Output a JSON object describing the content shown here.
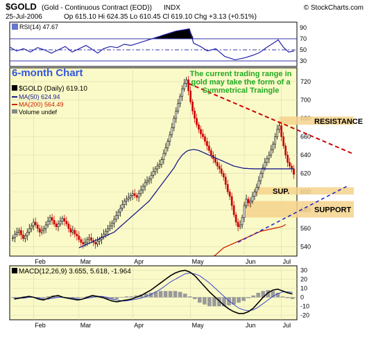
{
  "header": {
    "symbol": "$GOLD",
    "description": "(Gold - Continuous Contract (EOD))",
    "exchange": "INDX",
    "brand": "© StockCharts.com",
    "date": "25-Jul-2006",
    "ohlc": "Op 615.10  Hi 624.35  Lo 610.45  Cl 619.10  Chg +3.13 (+0.51%)"
  },
  "colors": {
    "panel_bg": "#fafac8",
    "price_line": "#000000",
    "up_bar": "#000000",
    "down_bar": "#cc0000",
    "ma50": "#1a1a8c",
    "ma200": "#cc2200",
    "trend_resistance": "#cc0000",
    "trend_support": "#2222cc",
    "zone": "#f5d28c",
    "annotation_green": "#22aa22",
    "label_blue": "#3355dd"
  },
  "chart_data": [
    {
      "type": "line",
      "panel": "rsi",
      "legend": "RSI(14) 47.67",
      "yticks": [
        30,
        50,
        70,
        90
      ],
      "ylim": [
        20,
        100
      ],
      "overbought": 70,
      "oversold": 30,
      "x": [
        0,
        10,
        20,
        30,
        40,
        50,
        60,
        70,
        80,
        90,
        100,
        110,
        120,
        127,
        135,
        145,
        155,
        165,
        175,
        185,
        195,
        205,
        215,
        222,
        230,
        240,
        250,
        259,
        265,
        275,
        285,
        297,
        310,
        325,
        340,
        350,
        360,
        370,
        380,
        387,
        395,
        402,
        410
      ],
      "values": [
        55,
        48,
        52,
        46,
        54,
        50,
        44,
        50,
        56,
        46,
        52,
        58,
        50,
        44,
        52,
        56,
        54,
        60,
        58,
        62,
        66,
        70,
        74,
        77,
        80,
        84,
        86,
        88,
        62,
        56,
        48,
        52,
        38,
        32,
        36,
        40,
        45,
        54,
        62,
        68,
        54,
        46,
        48
      ]
    },
    {
      "type": "candlestick",
      "panel": "price",
      "title": "6-month Chart",
      "legend": [
        "$GOLD (Daily) 619.10",
        "MA(50) 624.94",
        "MA(200) 564.49",
        "Volume undef"
      ],
      "x_axis": [
        "Feb",
        "Mar",
        "Apr",
        "May",
        "Jun",
        "Jul"
      ],
      "yticks": [
        540,
        560,
        580,
        600,
        620,
        640,
        660,
        680,
        700,
        720
      ],
      "ylim": [
        530,
        735
      ],
      "closes": [
        550,
        554,
        556,
        558,
        553,
        549,
        552,
        556,
        560,
        563,
        567,
        564,
        560,
        556,
        558,
        560,
        564,
        568,
        572,
        569,
        565,
        562,
        565,
        568,
        571,
        568,
        565,
        560,
        556,
        558,
        554,
        552,
        548,
        545,
        543,
        545,
        548,
        550,
        547,
        545,
        543,
        546,
        548,
        551,
        554,
        557,
        560,
        563,
        566,
        570,
        574,
        578,
        582,
        586,
        590,
        592,
        594,
        596,
        598,
        596,
        594,
        598,
        602,
        606,
        610,
        612,
        614,
        618,
        622,
        625,
        628,
        630,
        635,
        642,
        648,
        655,
        662,
        670,
        680,
        688,
        696,
        704,
        712,
        718,
        722,
        710,
        698,
        688,
        680,
        673,
        668,
        663,
        660,
        655,
        650,
        645,
        640,
        636,
        632,
        628,
        625,
        620,
        616,
        608,
        600,
        595,
        585,
        575,
        567,
        562,
        564,
        572,
        585,
        592,
        588,
        590,
        595,
        600,
        605,
        612,
        620,
        626,
        632,
        636,
        640,
        646,
        652,
        660,
        668,
        672,
        660,
        650,
        640,
        632,
        628,
        625,
        619
      ],
      "ma50": [
        null,
        null,
        null,
        null,
        null,
        null,
        null,
        null,
        null,
        null,
        null,
        null,
        null,
        null,
        null,
        null,
        null,
        null,
        null,
        null,
        null,
        null,
        null,
        null,
        null,
        null,
        null,
        null,
        null,
        null,
        null,
        null,
        539,
        540,
        541,
        542,
        543,
        544,
        545,
        546,
        547,
        548,
        549,
        550,
        551,
        552,
        553,
        554,
        555,
        556,
        558,
        560,
        562,
        564,
        566,
        568,
        570,
        572,
        574,
        576,
        578,
        580,
        582,
        584,
        586,
        588,
        590,
        593,
        596,
        599,
        602,
        605,
        608,
        611,
        614,
        617,
        620,
        623,
        626,
        630,
        634,
        637,
        640,
        642,
        644,
        645,
        645.5,
        646,
        646,
        645.5,
        645,
        644,
        643,
        642,
        641,
        640,
        639,
        638,
        637,
        636,
        635,
        634,
        633,
        632,
        631,
        630,
        629,
        628,
        627.5,
        627,
        626.5,
        626,
        625.5,
        625.5,
        625.3,
        625.2,
        625.1,
        625,
        625,
        625,
        625,
        625,
        625,
        625,
        625,
        625,
        625,
        625,
        625,
        625,
        625,
        625,
        625,
        625,
        625,
        625,
        625
      ],
      "ma200": [
        null,
        null,
        null,
        null,
        null,
        null,
        null,
        null,
        null,
        null,
        null,
        null,
        null,
        null,
        null,
        null,
        null,
        null,
        null,
        null,
        null,
        null,
        null,
        null,
        null,
        null,
        null,
        null,
        null,
        null,
        null,
        null,
        null,
        null,
        null,
        null,
        null,
        null,
        null,
        null,
        null,
        null,
        null,
        null,
        null,
        null,
        null,
        null,
        null,
        null,
        null,
        null,
        null,
        null,
        null,
        null,
        null,
        null,
        null,
        null,
        null,
        null,
        null,
        null,
        null,
        null,
        null,
        null,
        null,
        null,
        null,
        null,
        null,
        null,
        null,
        null,
        null,
        null,
        null,
        null,
        null,
        null,
        null,
        null,
        null,
        null,
        null,
        null,
        null,
        null,
        null,
        null,
        null,
        null,
        null,
        null,
        null,
        530,
        531,
        533,
        535,
        537,
        539,
        540,
        541,
        542,
        543,
        544,
        545,
        546,
        547,
        548,
        549,
        550,
        551,
        552,
        553,
        554,
        555,
        556,
        557,
        557.5,
        558,
        558.5,
        559,
        559.5,
        560,
        560.5,
        561,
        561.5,
        562,
        563,
        564.49
      ],
      "annotations": {
        "note": "The current trading range in gold may take the form of a Symmetrical Traingle",
        "resistance": "RESISTANCE",
        "sup": "SUP.",
        "support": "SUPPORT"
      },
      "resistance_line": [
        {
          "x": 108,
          "y": 718
        },
        {
          "x": 136,
          "y": 642
        }
      ],
      "support_line": [
        {
          "x": 108,
          "y": 545
        },
        {
          "x": 136,
          "y": 606
        }
      ],
      "resistance_zone": [
        673,
        682
      ],
      "sup_zone": [
        597,
        605
      ],
      "support_zone": [
        572,
        590
      ]
    },
    {
      "type": "line",
      "panel": "macd",
      "legend": "MACD(12,26,9) 3.655, 5.618, -1.964",
      "x_axis": [
        "Feb",
        "Mar",
        "Apr",
        "May",
        "Jun",
        "Jul"
      ],
      "yticks": [
        -20,
        -10,
        0,
        10,
        20,
        30
      ],
      "ylim": [
        -25,
        35
      ],
      "macd": [
        -2,
        -1,
        0,
        1,
        0,
        -2,
        -3,
        -1,
        1,
        2,
        0,
        -1,
        -2,
        -3,
        -2,
        0,
        2,
        1,
        0,
        -2,
        -4,
        -5,
        -4,
        -3,
        -2,
        0,
        2,
        5,
        8,
        12,
        16,
        20,
        24,
        27,
        29,
        30,
        28,
        24,
        18,
        12,
        6,
        1,
        -4,
        -9,
        -13,
        -16,
        -18,
        -18,
        -16,
        -12,
        -6,
        0,
        5,
        8,
        9,
        7,
        5,
        3.655
      ],
      "signal": [
        -1,
        -1,
        -1,
        0,
        0,
        -1,
        -2,
        -2,
        -1,
        0,
        0,
        -1,
        -1,
        -2,
        -2,
        -1,
        0,
        1,
        1,
        0,
        -2,
        -3,
        -4,
        -4,
        -3,
        -2,
        -1,
        1,
        3,
        6,
        9,
        13,
        17,
        20,
        23,
        26,
        27,
        26,
        24,
        20,
        16,
        11,
        6,
        1,
        -4,
        -8,
        -12,
        -14,
        -15,
        -14,
        -11,
        -7,
        -3,
        1,
        4,
        6,
        6,
        5.618
      ]
    }
  ]
}
